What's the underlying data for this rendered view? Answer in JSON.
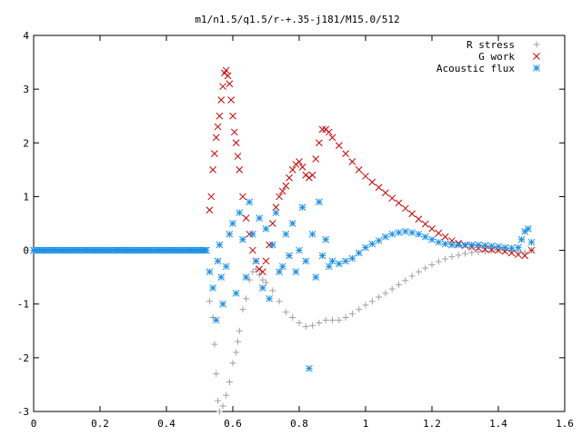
{
  "chart_data": {
    "type": "scatter",
    "title": "m1/n1.5/q1.5/r-+.35-j181/M15.0/512",
    "xlabel": "",
    "ylabel": "",
    "xlim": [
      0,
      1.6
    ],
    "ylim": [
      -3,
      4
    ],
    "grid": false,
    "legend_position": "top-right",
    "x_ticks": [
      0,
      0.2,
      0.4,
      0.6,
      0.8,
      1.0,
      1.2,
      1.4,
      1.6
    ],
    "x_tick_labels": [
      "0",
      "0.2",
      "0.4",
      "0.6",
      "0.8",
      "1",
      "1.2",
      "1.4",
      "1.6"
    ],
    "y_ticks": [
      -3,
      -2,
      -1,
      0,
      1,
      2,
      3,
      4
    ],
    "y_tick_labels": [
      "-3",
      "-2",
      "-1",
      "0",
      "1",
      "2",
      "3",
      "4"
    ],
    "series": [
      {
        "name": "R stress",
        "marker": "plus",
        "color": "#a0a0a0",
        "points": [
          [
            0.53,
            -0.95
          ],
          [
            0.54,
            -1.25
          ],
          [
            0.545,
            -1.75
          ],
          [
            0.55,
            -2.3
          ],
          [
            0.555,
            -2.8
          ],
          [
            0.56,
            -3.0
          ],
          [
            0.57,
            -2.9
          ],
          [
            0.58,
            -2.7
          ],
          [
            0.59,
            -2.45
          ],
          [
            0.6,
            -2.1
          ],
          [
            0.61,
            -1.9
          ],
          [
            0.615,
            -1.7
          ],
          [
            0.62,
            -1.5
          ],
          [
            0.63,
            -1.1
          ],
          [
            0.64,
            -0.9
          ],
          [
            0.65,
            -0.55
          ],
          [
            0.66,
            -0.4
          ],
          [
            0.67,
            -0.35
          ],
          [
            0.68,
            -0.45
          ],
          [
            0.69,
            -0.55
          ],
          [
            0.7,
            -0.6
          ],
          [
            0.72,
            -0.75
          ],
          [
            0.74,
            -0.95
          ],
          [
            0.76,
            -1.15
          ],
          [
            0.78,
            -1.25
          ],
          [
            0.8,
            -1.35
          ],
          [
            0.82,
            -1.42
          ],
          [
            0.84,
            -1.4
          ],
          [
            0.86,
            -1.35
          ],
          [
            0.88,
            -1.3
          ],
          [
            0.9,
            -1.3
          ],
          [
            0.92,
            -1.3
          ],
          [
            0.94,
            -1.25
          ],
          [
            0.96,
            -1.18
          ],
          [
            0.98,
            -1.1
          ],
          [
            1.0,
            -1.02
          ],
          [
            1.02,
            -0.95
          ],
          [
            1.04,
            -0.87
          ],
          [
            1.06,
            -0.8
          ],
          [
            1.08,
            -0.72
          ],
          [
            1.1,
            -0.64
          ],
          [
            1.12,
            -0.56
          ],
          [
            1.14,
            -0.48
          ],
          [
            1.16,
            -0.4
          ],
          [
            1.18,
            -0.33
          ],
          [
            1.2,
            -0.27
          ],
          [
            1.22,
            -0.21
          ],
          [
            1.24,
            -0.16
          ],
          [
            1.26,
            -0.12
          ],
          [
            1.28,
            -0.09
          ],
          [
            1.3,
            -0.06
          ],
          [
            1.32,
            -0.04
          ],
          [
            1.34,
            -0.03
          ],
          [
            1.36,
            -0.02
          ],
          [
            1.38,
            -0.01
          ],
          [
            1.4,
            0.0
          ],
          [
            1.42,
            0.0
          ],
          [
            1.44,
            0.0
          ],
          [
            1.46,
            -0.02
          ],
          [
            1.48,
            -0.04
          ],
          [
            1.5,
            0.0
          ]
        ]
      },
      {
        "name": "G work",
        "marker": "x",
        "color": "#cc0000",
        "points": [
          [
            0.53,
            0.75
          ],
          [
            0.535,
            1.0
          ],
          [
            0.54,
            1.5
          ],
          [
            0.545,
            1.8
          ],
          [
            0.55,
            2.1
          ],
          [
            0.555,
            2.3
          ],
          [
            0.56,
            2.5
          ],
          [
            0.565,
            2.8
          ],
          [
            0.57,
            3.05
          ],
          [
            0.575,
            3.3
          ],
          [
            0.58,
            3.35
          ],
          [
            0.585,
            3.25
          ],
          [
            0.59,
            3.1
          ],
          [
            0.595,
            2.8
          ],
          [
            0.6,
            2.5
          ],
          [
            0.605,
            2.2
          ],
          [
            0.61,
            2.0
          ],
          [
            0.615,
            1.75
          ],
          [
            0.62,
            1.5
          ],
          [
            0.63,
            1.0
          ],
          [
            0.64,
            0.6
          ],
          [
            0.65,
            0.3
          ],
          [
            0.66,
            0.0
          ],
          [
            0.67,
            -0.2
          ],
          [
            0.68,
            -0.35
          ],
          [
            0.69,
            -0.4
          ],
          [
            0.7,
            -0.2
          ],
          [
            0.71,
            0.1
          ],
          [
            0.72,
            0.5
          ],
          [
            0.73,
            0.8
          ],
          [
            0.74,
            1.0
          ],
          [
            0.75,
            1.1
          ],
          [
            0.76,
            1.2
          ],
          [
            0.77,
            1.35
          ],
          [
            0.78,
            1.5
          ],
          [
            0.79,
            1.6
          ],
          [
            0.8,
            1.65
          ],
          [
            0.81,
            1.55
          ],
          [
            0.82,
            1.4
          ],
          [
            0.83,
            1.35
          ],
          [
            0.84,
            1.4
          ],
          [
            0.85,
            1.7
          ],
          [
            0.86,
            2.0
          ],
          [
            0.87,
            2.25
          ],
          [
            0.88,
            2.25
          ],
          [
            0.89,
            2.2
          ],
          [
            0.9,
            2.1
          ],
          [
            0.92,
            1.95
          ],
          [
            0.94,
            1.8
          ],
          [
            0.96,
            1.65
          ],
          [
            0.98,
            1.5
          ],
          [
            1.0,
            1.38
          ],
          [
            1.02,
            1.27
          ],
          [
            1.04,
            1.17
          ],
          [
            1.06,
            1.07
          ],
          [
            1.08,
            0.97
          ],
          [
            1.1,
            0.88
          ],
          [
            1.12,
            0.78
          ],
          [
            1.14,
            0.68
          ],
          [
            1.16,
            0.58
          ],
          [
            1.18,
            0.49
          ],
          [
            1.2,
            0.4
          ],
          [
            1.22,
            0.32
          ],
          [
            1.24,
            0.25
          ],
          [
            1.26,
            0.18
          ],
          [
            1.28,
            0.13
          ],
          [
            1.3,
            0.09
          ],
          [
            1.32,
            0.06
          ],
          [
            1.34,
            0.04
          ],
          [
            1.36,
            0.02
          ],
          [
            1.38,
            0.01
          ],
          [
            1.4,
            0.0
          ],
          [
            1.42,
            -0.02
          ],
          [
            1.44,
            -0.05
          ],
          [
            1.46,
            -0.08
          ],
          [
            1.48,
            -0.1
          ],
          [
            1.5,
            0.0
          ]
        ]
      },
      {
        "name": "Acoustic flux",
        "marker": "star",
        "color": "#1a8fe6",
        "points": [
          [
            0.53,
            -0.4
          ],
          [
            0.54,
            -0.7
          ],
          [
            0.55,
            -1.3
          ],
          [
            0.555,
            -0.2
          ],
          [
            0.56,
            0.1
          ],
          [
            0.565,
            -0.5
          ],
          [
            0.57,
            -1.0
          ],
          [
            0.58,
            -0.3
          ],
          [
            0.59,
            0.3
          ],
          [
            0.6,
            0.5
          ],
          [
            0.61,
            -0.8
          ],
          [
            0.62,
            0.7
          ],
          [
            0.63,
            0.2
          ],
          [
            0.64,
            -0.5
          ],
          [
            0.65,
            0.9
          ],
          [
            0.66,
            0.3
          ],
          [
            0.67,
            -0.2
          ],
          [
            0.68,
            0.6
          ],
          [
            0.69,
            -0.7
          ],
          [
            0.7,
            0.4
          ],
          [
            0.71,
            -0.9
          ],
          [
            0.72,
            0.1
          ],
          [
            0.73,
            0.7
          ],
          [
            0.74,
            -0.4
          ],
          [
            0.75,
            -0.3
          ],
          [
            0.76,
            0.3
          ],
          [
            0.77,
            -0.1
          ],
          [
            0.78,
            0.5
          ],
          [
            0.79,
            -0.4
          ],
          [
            0.8,
            0.0
          ],
          [
            0.81,
            0.8
          ],
          [
            0.82,
            -0.2
          ],
          [
            0.83,
            -2.2
          ],
          [
            0.84,
            0.3
          ],
          [
            0.85,
            -0.5
          ],
          [
            0.86,
            0.9
          ],
          [
            0.87,
            -0.1
          ],
          [
            0.88,
            0.2
          ],
          [
            0.89,
            -0.3
          ],
          [
            0.9,
            -0.2
          ],
          [
            0.92,
            -0.25
          ],
          [
            0.94,
            -0.2
          ],
          [
            0.96,
            -0.15
          ],
          [
            0.98,
            -0.05
          ],
          [
            1.0,
            0.05
          ],
          [
            1.02,
            0.12
          ],
          [
            1.04,
            0.18
          ],
          [
            1.06,
            0.25
          ],
          [
            1.08,
            0.3
          ],
          [
            1.1,
            0.33
          ],
          [
            1.12,
            0.35
          ],
          [
            1.14,
            0.33
          ],
          [
            1.16,
            0.3
          ],
          [
            1.18,
            0.25
          ],
          [
            1.2,
            0.2
          ],
          [
            1.22,
            0.15
          ],
          [
            1.24,
            0.12
          ],
          [
            1.26,
            0.1
          ],
          [
            1.28,
            0.1
          ],
          [
            1.3,
            0.1
          ],
          [
            1.32,
            0.1
          ],
          [
            1.34,
            0.1
          ],
          [
            1.36,
            0.09
          ],
          [
            1.38,
            0.08
          ],
          [
            1.4,
            0.07
          ],
          [
            1.42,
            0.05
          ],
          [
            1.44,
            0.04
          ],
          [
            1.46,
            0.05
          ],
          [
            1.47,
            0.2
          ],
          [
            1.48,
            0.35
          ],
          [
            1.49,
            0.4
          ],
          [
            1.5,
            0.15
          ],
          [
            0.0,
            0.0
          ],
          [
            0.52,
            0.0
          ]
        ]
      }
    ]
  }
}
